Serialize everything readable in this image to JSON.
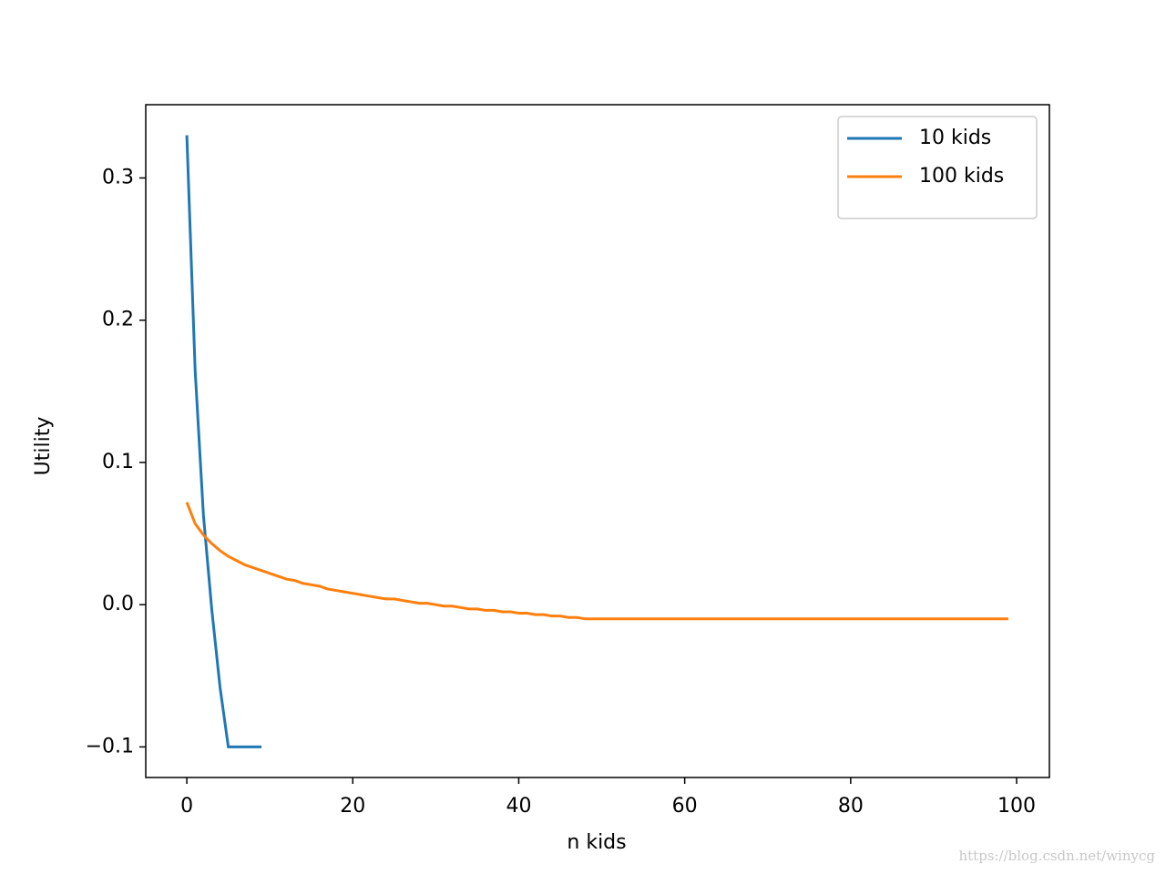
{
  "chart_data": {
    "type": "line",
    "xlabel": "n kids",
    "ylabel": "Utility",
    "xlim": [
      -4.95,
      103.95
    ],
    "ylim": [
      -0.1215,
      0.3515
    ],
    "xticks": [
      0,
      20,
      40,
      60,
      80,
      100
    ],
    "yticks": [
      {
        "value": -0.1,
        "label": "−0.1"
      },
      {
        "value": 0,
        "label": "0.0"
      },
      0.1,
      0.2,
      0.3
    ],
    "legend": "upper right",
    "series": [
      {
        "name": "10 kids",
        "color": "#1f77b4",
        "x": [
          0,
          1,
          2,
          3,
          4,
          5,
          6,
          7,
          8,
          9
        ],
        "values": [
          0.33,
          0.165,
          0.063,
          -0.003,
          -0.058,
          -0.1,
          -0.1,
          -0.1,
          -0.1,
          -0.1
        ]
      },
      {
        "name": "100 kids",
        "color": "#ff7f0e",
        "x": [
          0,
          1,
          2,
          3,
          4,
          5,
          6,
          7,
          8,
          9,
          10,
          11,
          12,
          13,
          14,
          15,
          16,
          17,
          18,
          19,
          20,
          21,
          22,
          23,
          24,
          25,
          26,
          27,
          28,
          29,
          30,
          31,
          32,
          33,
          34,
          35,
          36,
          37,
          38,
          39,
          40,
          41,
          42,
          43,
          44,
          45,
          46,
          47,
          48,
          49,
          50,
          51,
          52,
          53,
          54,
          55,
          56,
          57,
          58,
          59,
          60,
          61,
          62,
          63,
          64,
          65,
          66,
          67,
          68,
          69,
          70,
          71,
          72,
          73,
          74,
          75,
          76,
          77,
          78,
          79,
          80,
          81,
          82,
          83,
          84,
          85,
          86,
          87,
          88,
          89,
          90,
          91,
          92,
          93,
          94,
          95,
          96,
          97,
          98,
          99
        ],
        "values": [
          0.072,
          0.057,
          0.049,
          0.043,
          0.038,
          0.034,
          0.031,
          0.028,
          0.026,
          0.024,
          0.022,
          0.02,
          0.018,
          0.017,
          0.015,
          0.014,
          0.013,
          0.011,
          0.01,
          0.009,
          0.008,
          0.007,
          0.006,
          0.005,
          0.004,
          0.004,
          0.003,
          0.002,
          0.001,
          0.001,
          0.0,
          -0.001,
          -0.001,
          -0.002,
          -0.003,
          -0.003,
          -0.004,
          -0.004,
          -0.005,
          -0.005,
          -0.006,
          -0.006,
          -0.007,
          -0.007,
          -0.008,
          -0.008,
          -0.009,
          -0.009,
          -0.01,
          -0.01,
          -0.01,
          -0.01,
          -0.01,
          -0.01,
          -0.01,
          -0.01,
          -0.01,
          -0.01,
          -0.01,
          -0.01,
          -0.01,
          -0.01,
          -0.01,
          -0.01,
          -0.01,
          -0.01,
          -0.01,
          -0.01,
          -0.01,
          -0.01,
          -0.01,
          -0.01,
          -0.01,
          -0.01,
          -0.01,
          -0.01,
          -0.01,
          -0.01,
          -0.01,
          -0.01,
          -0.01,
          -0.01,
          -0.01,
          -0.01,
          -0.01,
          -0.01,
          -0.01,
          -0.01,
          -0.01,
          -0.01,
          -0.01,
          -0.01,
          -0.01,
          -0.01,
          -0.01,
          -0.01,
          -0.01,
          -0.01,
          -0.01,
          -0.01
        ]
      }
    ]
  },
  "watermark": "https://blog.csdn.net/winycg"
}
